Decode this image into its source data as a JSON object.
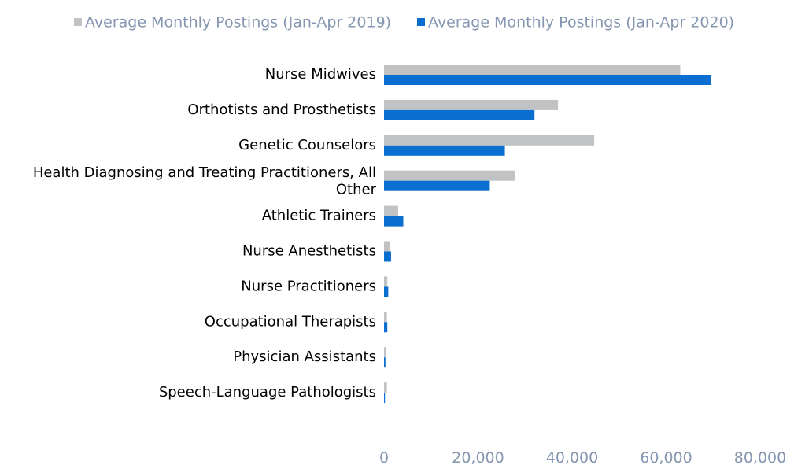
{
  "chart_data": {
    "type": "bar",
    "orientation": "horizontal",
    "categories": [
      "Nurse Midwives",
      "Orthotists and Prosthetists",
      "Genetic Counselors",
      "Health Diagnosing and Treating Practitioners, All Other",
      "Athletic Trainers",
      "Nurse Anesthetists",
      "Nurse Practitioners",
      "Occupational Therapists",
      "Physician Assistants",
      "Speech-Language Pathologists"
    ],
    "series": [
      {
        "name": "Average Monthly Postings (Jan-Apr 2019)",
        "color": "#c0c2c4",
        "values": [
          63000,
          37000,
          44700,
          27800,
          3000,
          1300,
          700,
          600,
          400,
          600
        ]
      },
      {
        "name": "Average Monthly Postings (Jan-Apr 2020)",
        "color": "#0a6fd1",
        "values": [
          69500,
          32000,
          25700,
          22500,
          4100,
          1500,
          900,
          700,
          300,
          200
        ]
      }
    ],
    "xlim": [
      0,
      80000
    ],
    "xticks": [
      "0",
      "20,000",
      "40,000",
      "60,000",
      "80,000"
    ],
    "xlabel": "",
    "ylabel": "",
    "legend_position": "top",
    "grid": false
  }
}
